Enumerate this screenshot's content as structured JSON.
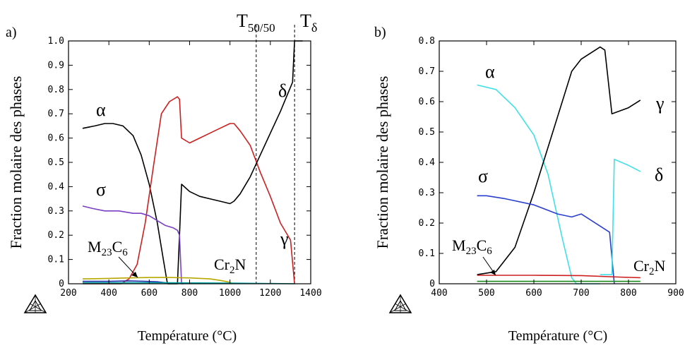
{
  "chart_data": [
    {
      "type": "line",
      "panel_label": "a)",
      "xlabel": "Température (°C)",
      "ylabel": "Fraction molaire des phases",
      "xlim": [
        200,
        1400
      ],
      "ylim": [
        0,
        1.0
      ],
      "xticks": [
        "200",
        "400",
        "600",
        "800",
        "1000",
        "1200",
        "1400"
      ],
      "yticks": [
        "0",
        "0.1",
        "0.2",
        "0.3",
        "0.4",
        "0.5",
        "0.6",
        "0.7",
        "0.8",
        "0.9",
        "1.0"
      ],
      "series": [
        {
          "name": "α",
          "color": "#000000",
          "x": [
            270,
            330,
            380,
            420,
            470,
            520,
            560,
            600,
            640,
            670,
            690
          ],
          "y": [
            0.64,
            0.65,
            0.66,
            0.66,
            0.65,
            0.61,
            0.53,
            0.41,
            0.25,
            0.1,
            0.0
          ]
        },
        {
          "name": "γ",
          "color": "#cc2020",
          "x": [
            270,
            460,
            500,
            540,
            580,
            620,
            660,
            700,
            740,
            750,
            760,
            800,
            850,
            900,
            950,
            1000,
            1020,
            1050,
            1100,
            1150,
            1200,
            1250,
            1300,
            1320
          ],
          "y": [
            0.0,
            0.0,
            0.02,
            0.08,
            0.25,
            0.48,
            0.7,
            0.75,
            0.77,
            0.76,
            0.6,
            0.58,
            0.6,
            0.62,
            0.64,
            0.66,
            0.66,
            0.63,
            0.57,
            0.46,
            0.36,
            0.25,
            0.18,
            0.0
          ]
        },
        {
          "name": "δ",
          "color": "#000000",
          "x": [
            690,
            740,
            750,
            760,
            800,
            850,
            900,
            950,
            1000,
            1020,
            1050,
            1100,
            1150,
            1200,
            1250,
            1300,
            1310,
            1320,
            1340,
            1360
          ],
          "y": [
            0.0,
            0.0,
            0.2,
            0.41,
            0.38,
            0.36,
            0.35,
            0.34,
            0.33,
            0.34,
            0.37,
            0.44,
            0.53,
            0.62,
            0.71,
            0.81,
            0.83,
            1.0,
            1.0,
            1.0
          ]
        },
        {
          "name": "σ",
          "color": "#7a3fc4",
          "x": [
            270,
            320,
            380,
            450,
            520,
            560,
            600,
            640,
            680,
            720,
            740,
            750,
            760,
            770
          ],
          "y": [
            0.32,
            0.31,
            0.3,
            0.3,
            0.29,
            0.29,
            0.28,
            0.26,
            0.24,
            0.23,
            0.22,
            0.2,
            0.0,
            0.0
          ]
        },
        {
          "name": "M₂₃C₆",
          "color": "#1f2ea8",
          "x": [
            270,
            400,
            500,
            580,
            640,
            680,
            700
          ],
          "y": [
            0.01,
            0.01,
            0.012,
            0.01,
            0.008,
            0.004,
            0.0
          ]
        },
        {
          "name": "Cr₂N",
          "color": "#b7a800",
          "x": [
            270,
            400,
            500,
            600,
            700,
            800,
            900,
            950,
            1000,
            1010
          ],
          "y": [
            0.02,
            0.022,
            0.024,
            0.026,
            0.026,
            0.024,
            0.02,
            0.014,
            0.006,
            0.0
          ]
        },
        {
          "name": "",
          "color": "#00a0a0",
          "x": [
            270,
            500,
            700,
            1000,
            1320
          ],
          "y": [
            0.004,
            0.004,
            0.004,
            0.003,
            0.0
          ]
        }
      ],
      "vlines": [
        1130,
        1320
      ],
      "labels": {
        "alpha": "α",
        "sigma": "σ",
        "delta": "δ",
        "gamma": "γ",
        "m23c6": "M23C6",
        "cr2n": "Cr2N",
        "t5050": "T50/50",
        "tdelta": "Tδ"
      }
    },
    {
      "type": "line",
      "panel_label": "b)",
      "xlabel": "Température (°C)",
      "ylabel": "Fraction molaire des phases",
      "xlim": [
        400,
        900
      ],
      "ylim": [
        0,
        0.8
      ],
      "xticks": [
        "400",
        "500",
        "600",
        "700",
        "800",
        "900"
      ],
      "yticks": [
        "0",
        "0.1",
        "0.2",
        "0.3",
        "0.4",
        "0.5",
        "0.6",
        "0.7",
        "0.8"
      ],
      "series": [
        {
          "name": "α",
          "color": "#40e0e8",
          "x": [
            480,
            520,
            560,
            600,
            630,
            660,
            680,
            690,
            740
          ],
          "y": [
            0.655,
            0.64,
            0.58,
            0.49,
            0.36,
            0.15,
            0.02,
            0.0,
            0.0
          ]
        },
        {
          "name": "γ",
          "color": "#000000",
          "x": [
            480,
            520,
            560,
            600,
            640,
            680,
            700,
            740,
            750,
            765,
            800,
            825
          ],
          "y": [
            0.03,
            0.04,
            0.12,
            0.3,
            0.5,
            0.7,
            0.74,
            0.78,
            0.77,
            0.56,
            0.58,
            0.605
          ]
        },
        {
          "name": "σ",
          "color": "#2a3fcf",
          "x": [
            480,
            500,
            540,
            600,
            650,
            680,
            700,
            720,
            740,
            760,
            770
          ],
          "y": [
            0.29,
            0.29,
            0.28,
            0.26,
            0.23,
            0.22,
            0.23,
            0.21,
            0.19,
            0.17,
            0.0
          ]
        },
        {
          "name": "δ",
          "color": "#40e0e8",
          "x": [
            740,
            765,
            770,
            800,
            825
          ],
          "y": [
            0.03,
            0.03,
            0.41,
            0.39,
            0.37
          ]
        },
        {
          "name": "Cr₂N",
          "color": "#cc2020",
          "x": [
            480,
            600,
            700,
            780,
            825
          ],
          "y": [
            0.028,
            0.028,
            0.027,
            0.022,
            0.02
          ]
        },
        {
          "name": "M₂₃C₆",
          "color": "#1a8a1a",
          "x": [
            480,
            600,
            700,
            825
          ],
          "y": [
            0.008,
            0.008,
            0.008,
            0.008
          ]
        }
      ],
      "labels": {
        "alpha": "α",
        "sigma": "σ",
        "delta": "δ",
        "gamma": "γ",
        "m23c6": "M23C6",
        "cr2n": "Cr2N"
      }
    }
  ]
}
